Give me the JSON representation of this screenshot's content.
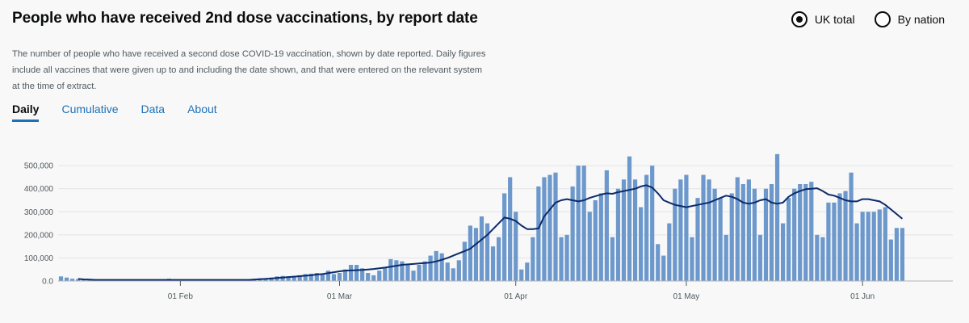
{
  "header": {
    "title": "People who have received 2nd dose vaccinations, by report date",
    "description": "The number of people who have received a second dose COVID-19 vaccination, shown by date reported. Daily figures include all vaccines that were given up to and including the date shown, and that were entered on the relevant system at the time of extract."
  },
  "radios": [
    {
      "label": "UK total",
      "selected": true
    },
    {
      "label": "By nation",
      "selected": false
    }
  ],
  "tabs": [
    {
      "label": "Daily",
      "active": true
    },
    {
      "label": "Cumulative",
      "active": false
    },
    {
      "label": "Data",
      "active": false
    },
    {
      "label": "About",
      "active": false
    }
  ],
  "colors": {
    "bar": "#6c98cc",
    "line": "#0b2b6b",
    "grid": "#e3e3e3"
  },
  "chart_data": {
    "type": "bar",
    "title": "People who have received 2nd dose vaccinations, by report date",
    "ylim": [
      0,
      560000
    ],
    "y_ticks": [
      0,
      100000,
      200000,
      300000,
      400000,
      500000
    ],
    "y_tick_labels": [
      "0.0",
      "100,000",
      "200,000",
      "300,000",
      "400,000",
      "500,000"
    ],
    "x_ticks": [
      {
        "index": 21,
        "label": "01 Feb"
      },
      {
        "index": 49,
        "label": "01 Mar"
      },
      {
        "index": 80,
        "label": "01 Apr"
      },
      {
        "index": 110,
        "label": "01 May"
      },
      {
        "index": 141,
        "label": "01 Jun"
      }
    ],
    "series": [
      {
        "name": "Daily",
        "type": "bar",
        "values": [
          20000,
          15000,
          10000,
          8000,
          7000,
          6000,
          5000,
          5000,
          5000,
          5000,
          5000,
          5000,
          5000,
          5000,
          5000,
          5000,
          5000,
          5000,
          5000,
          10000,
          5000,
          5000,
          5000,
          5000,
          5000,
          5000,
          5000,
          5000,
          5000,
          5000,
          5000,
          5000,
          5000,
          5000,
          10000,
          12000,
          13000,
          15000,
          20000,
          22000,
          20000,
          22000,
          25000,
          30000,
          32000,
          35000,
          30000,
          45000,
          30000,
          35000,
          50000,
          70000,
          70000,
          55000,
          35000,
          25000,
          45000,
          60000,
          95000,
          90000,
          85000,
          70000,
          45000,
          70000,
          85000,
          110000,
          130000,
          120000,
          80000,
          55000,
          90000,
          170000,
          240000,
          230000,
          280000,
          250000,
          150000,
          190000,
          380000,
          450000,
          300000,
          50000,
          80000,
          190000,
          410000,
          450000,
          460000,
          470000,
          190000,
          200000,
          410000,
          500000,
          500000,
          300000,
          350000,
          380000,
          480000,
          190000,
          400000,
          440000,
          540000,
          440000,
          320000,
          460000,
          500000,
          160000,
          110000,
          250000,
          400000,
          440000,
          460000,
          190000,
          360000,
          460000,
          440000,
          400000,
          360000,
          200000,
          380000,
          450000,
          420000,
          440000,
          400000,
          200000,
          400000,
          420000,
          550000,
          250000,
          360000,
          400000,
          420000,
          420000,
          430000,
          200000,
          190000,
          340000,
          340000,
          380000,
          390000,
          470000,
          250000,
          300000,
          300000,
          300000,
          310000,
          320000,
          180000,
          230000,
          230000
        ],
        "value_labels": []
      },
      {
        "name": "7-day average",
        "type": "line",
        "start_index": 3,
        "end_index": 150,
        "values": [
          9000,
          7000,
          6000,
          5000,
          5000,
          5000,
          5000,
          5000,
          5000,
          5000,
          5000,
          5000,
          5000,
          5000,
          5000,
          5000,
          5000,
          5000,
          5000,
          5000,
          5000,
          5000,
          5000,
          5000,
          5000,
          5000,
          5000,
          5000,
          5000,
          5000,
          5000,
          6000,
          8000,
          9000,
          11000,
          13000,
          15000,
          17000,
          19000,
          21000,
          23000,
          25000,
          28000,
          30000,
          34000,
          38000,
          42000,
          45000,
          46000,
          47000,
          48000,
          50000,
          52000,
          55000,
          58000,
          62000,
          66000,
          70000,
          72000,
          74000,
          76000,
          78000,
          80000,
          85000,
          92000,
          100000,
          110000,
          120000,
          130000,
          140000,
          160000,
          180000,
          200000,
          225000,
          250000,
          275000,
          270000,
          260000,
          240000,
          225000,
          225000,
          228000,
          280000,
          310000,
          340000,
          350000,
          355000,
          350000,
          345000,
          350000,
          360000,
          368000,
          375000,
          380000,
          378000,
          385000,
          390000,
          395000,
          400000,
          410000,
          415000,
          405000,
          380000,
          350000,
          340000,
          330000,
          325000,
          320000,
          325000,
          330000,
          335000,
          340000,
          350000,
          360000,
          370000,
          365000,
          355000,
          340000,
          335000,
          340000,
          350000,
          355000,
          340000,
          335000,
          340000,
          365000,
          380000,
          390000,
          398000,
          400000,
          402000,
          390000,
          375000,
          370000,
          360000,
          350000,
          345000,
          345000,
          355000,
          355000,
          350000,
          345000,
          330000,
          310000,
          290000,
          270000
        ]
      }
    ]
  }
}
